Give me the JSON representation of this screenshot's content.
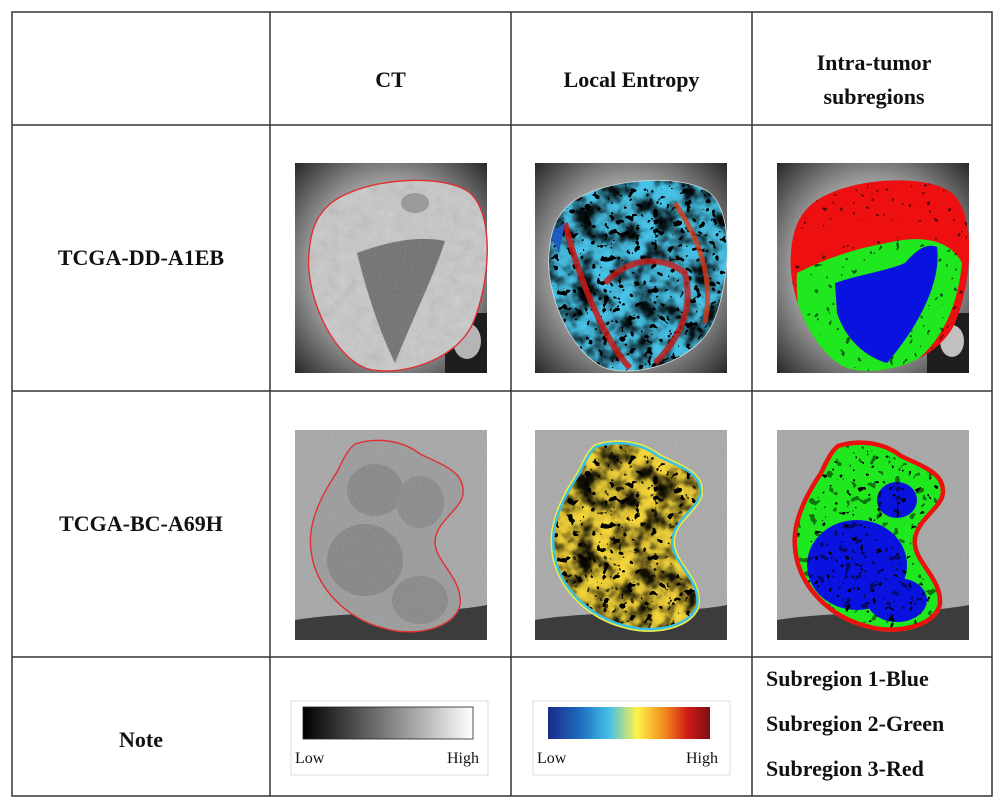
{
  "table": {
    "headers": [
      "",
      "CT",
      "Local Entropy",
      "Intra-tumor subregions"
    ],
    "rows": [
      {
        "label": "TCGA-DD-A1EB"
      },
      {
        "label": "TCGA-BC-A69H"
      }
    ],
    "note_label": "Note"
  },
  "colorbars": {
    "ct": {
      "low": "Low",
      "high": "High",
      "stops": [
        "#000000",
        "#ffffff"
      ]
    },
    "entropy": {
      "low": "Low",
      "high": "High",
      "stops": [
        "#1a2a8a",
        "#1d6cc0",
        "#45c1e6",
        "#fff24a",
        "#f08a1c",
        "#d21c18",
        "#7a0f12"
      ]
    }
  },
  "subregion_legend": [
    {
      "text": "Subregion 1-Blue",
      "color": "#0a12e0"
    },
    {
      "text": "Subregion 2-Green",
      "color": "#1fe81f"
    },
    {
      "text": "Subregion 3-Red",
      "color": "#ee1010"
    }
  ]
}
